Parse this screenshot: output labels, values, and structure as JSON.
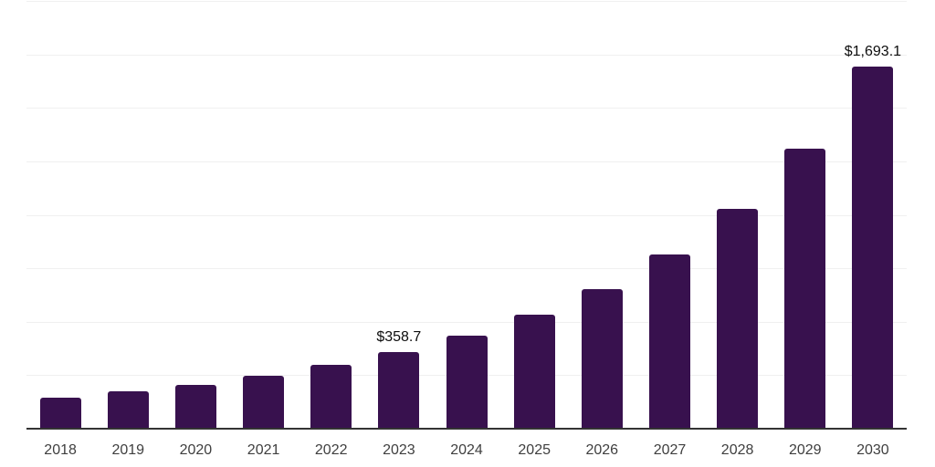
{
  "page": {
    "background": "#ffffff"
  },
  "chart_data": {
    "type": "bar",
    "title": "",
    "xlabel": "",
    "ylabel": "",
    "categories": [
      "2018",
      "2019",
      "2020",
      "2021",
      "2022",
      "2023",
      "2024",
      "2025",
      "2026",
      "2027",
      "2028",
      "2029",
      "2030"
    ],
    "values": [
      147,
      173,
      206,
      248,
      297,
      358.7,
      434,
      534,
      652,
      815,
      1027,
      1308,
      1693.1
    ],
    "ylim": [
      0,
      2000
    ],
    "gridline_step": 250,
    "grid": "horizontal-only",
    "y_axis_labels_visible": false,
    "legend": "none",
    "data_labels_shown": [
      {
        "category": "2023",
        "text": "$358.7"
      },
      {
        "category": "2030",
        "text": "$1,693.1"
      }
    ],
    "colors": {
      "bar": "#38114E",
      "axis_line": "#333333",
      "gridline": "#f0f0f0",
      "tick_label": "#3f3f3f",
      "data_label": "#0d0d0d"
    }
  }
}
